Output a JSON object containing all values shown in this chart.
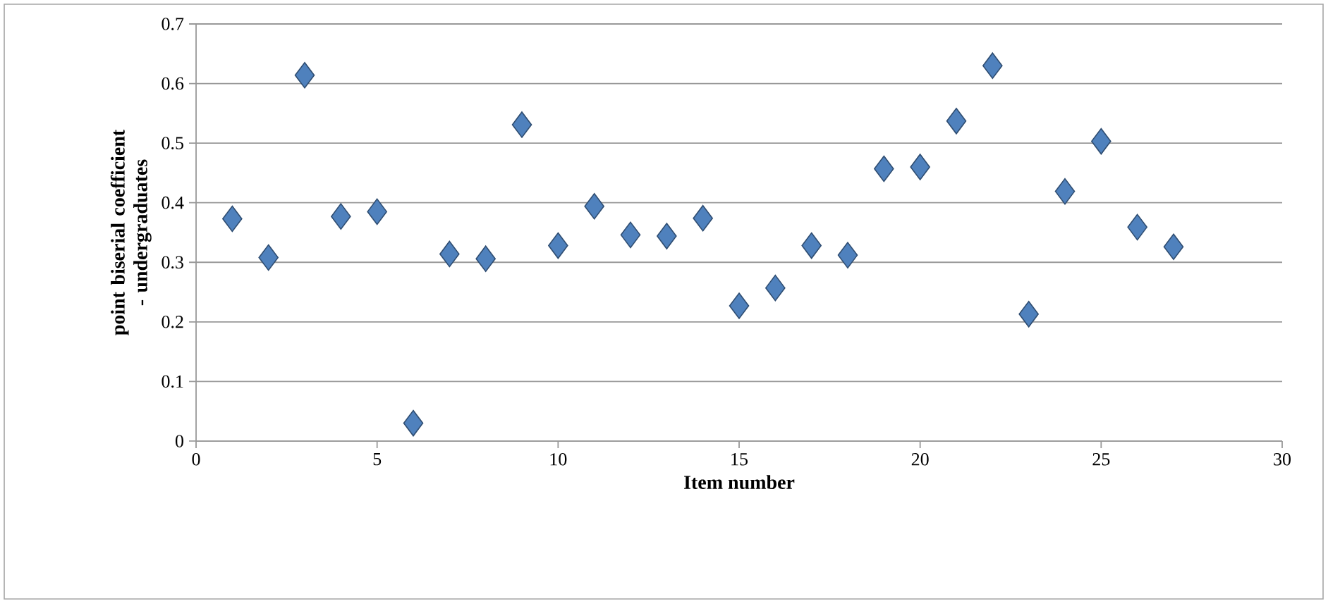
{
  "chart_data": {
    "type": "scatter",
    "xlabel": "Item number",
    "ylabel": "point biserial coefficient - undergraduates",
    "x": [
      1,
      2,
      3,
      4,
      5,
      6,
      7,
      8,
      9,
      10,
      11,
      12,
      13,
      14,
      15,
      16,
      17,
      18,
      19,
      20,
      21,
      22,
      23,
      24,
      25,
      26,
      27
    ],
    "values": [
      0.373,
      0.308,
      0.614,
      0.377,
      0.385,
      0.03,
      0.314,
      0.306,
      0.531,
      0.328,
      0.394,
      0.346,
      0.344,
      0.374,
      0.227,
      0.257,
      0.328,
      0.312,
      0.457,
      0.46,
      0.537,
      0.63,
      0.213,
      0.419,
      0.503,
      0.359,
      0.326
    ],
    "color": "#4f81bd",
    "marker": "diamond",
    "grid": "y",
    "xlim": [
      0,
      30
    ],
    "xticks": [
      0,
      5,
      10,
      15,
      20,
      25,
      30
    ],
    "ylim": [
      0,
      0.7
    ],
    "yticks": [
      0,
      0.1,
      0.2,
      0.3,
      0.4,
      0.5,
      0.6,
      0.7
    ]
  }
}
